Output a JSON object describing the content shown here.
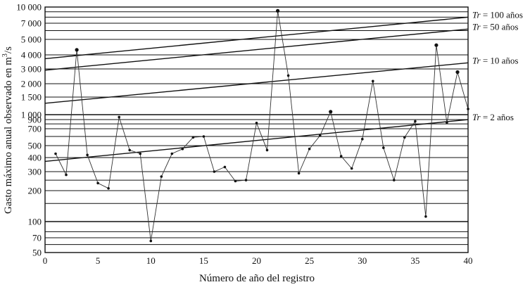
{
  "chart_data": {
    "type": "line",
    "xlabel": "Número de año del registro",
    "ylabel": "Gasto máximo anual observado en m³/s",
    "ylabel_prefix": "Gasto máximo anual observado en m",
    "ylabel_sup": "3",
    "ylabel_suffix": "/s",
    "xlim": [
      0,
      40
    ],
    "ylim": [
      50,
      10000
    ],
    "y_scale": "probability (log-like)",
    "x_ticks": [
      0,
      5,
      10,
      15,
      20,
      25,
      30,
      35,
      40
    ],
    "x_tick_labels": [
      "0",
      "5",
      "10",
      "15",
      "20",
      "25",
      "30",
      "35",
      "40"
    ],
    "y_ticks": [
      10000,
      7000,
      5000,
      4000,
      3000,
      2000,
      1500,
      1000,
      900,
      700,
      500,
      400,
      300,
      200,
      100,
      70,
      50
    ],
    "y_tick_labels": [
      "10 000",
      "7 000",
      "5 000",
      "4 000",
      "3 000",
      "2 000",
      "1 500",
      "1 000",
      "900",
      "700",
      "500",
      "400",
      "300",
      "200",
      "100",
      "70",
      "50"
    ],
    "grid": true,
    "series": [
      {
        "x": [
          1,
          2,
          3,
          4,
          5,
          6,
          7,
          8,
          9,
          10,
          11,
          12,
          13,
          14,
          15,
          16,
          17,
          18,
          19,
          20,
          21,
          22,
          23,
          24,
          25,
          26,
          27,
          28,
          29,
          30,
          31,
          32,
          33,
          34,
          35,
          36,
          37,
          38,
          39,
          40
        ],
        "y": [
          430,
          280,
          4300,
          420,
          235,
          210,
          950,
          460,
          430,
          65,
          270,
          430,
          470,
          590,
          600,
          300,
          330,
          245,
          250,
          820,
          460,
          9200,
          2500,
          290,
          470,
          610,
          1070,
          410,
          320,
          570,
          2150,
          480,
          250,
          590,
          860,
          112,
          4600,
          830,
          2750,
          1140
        ]
      }
    ],
    "trend_lines": [
      {
        "label_prefix": "Tr",
        "label_suffix": " = 100 años",
        "y_start": 3700,
        "y_end": 8000
      },
      {
        "label_prefix": "Tr",
        "label_suffix": " = 50 años",
        "y_start": 2900,
        "y_end": 6200
      },
      {
        "label_prefix": "Tr",
        "label_suffix": " = 10 años",
        "y_start": 1300,
        "y_end": 3400
      },
      {
        "label_prefix": "Tr",
        "label_suffix": " = 2 años",
        "y_start": 370,
        "y_end": 900
      }
    ],
    "larger_markers_at_x": [
      3,
      22,
      27,
      37,
      39
    ]
  }
}
